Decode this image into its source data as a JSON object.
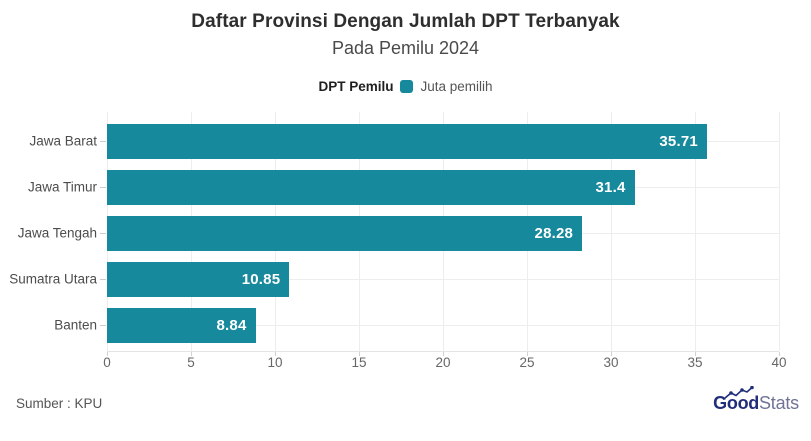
{
  "header": {
    "title": "Daftar Provinsi Dengan Jumlah DPT Terbanyak",
    "subtitle": "Pada Pemilu 2024"
  },
  "legend": {
    "title": "DPT Pemilu",
    "item_label": "Juta pemilih",
    "swatch_color": "#17899C"
  },
  "chart_data": {
    "type": "bar",
    "orientation": "horizontal",
    "title": "Daftar Provinsi Dengan Jumlah DPT Terbanyak",
    "subtitle": "Pada Pemilu 2024",
    "series_name": "Juta pemilih",
    "categories": [
      "Jawa Barat",
      "Jawa Timur",
      "Jawa Tengah",
      "Sumatra Utara",
      "Banten"
    ],
    "values": [
      35.71,
      31.4,
      28.28,
      10.85,
      8.84
    ],
    "value_labels": [
      "35.71",
      "31.4",
      "28.28",
      "10.85",
      "8.84"
    ],
    "xlim": [
      0,
      40
    ],
    "x_ticks": [
      0,
      5,
      10,
      15,
      20,
      25,
      30,
      35,
      40
    ],
    "grid": true,
    "legend_position": "top",
    "bar_color": "#17899C",
    "value_label_color": "#ffffff"
  },
  "footer": {
    "source": "Sumber : KPU",
    "logo": {
      "bold": "Good",
      "light": "Stats",
      "navy": "#212E79",
      "gray": "#6F7396"
    }
  }
}
